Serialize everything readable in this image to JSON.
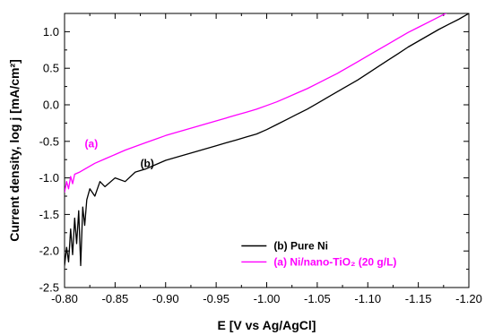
{
  "chart_data": {
    "type": "line",
    "xlabel": "E [V vs Ag/AgCl]",
    "ylabel": "Current density, log j [mA/cm²]",
    "xlim": [
      -0.8,
      -1.2
    ],
    "ylim": [
      -2.5,
      1.25
    ],
    "x_ticks": [
      -0.8,
      -0.85,
      -0.9,
      -0.95,
      -1.0,
      -1.05,
      -1.1,
      -1.15,
      -1.2
    ],
    "x_tick_labels": [
      "-0.80",
      "-0.85",
      "-0.90",
      "-0.95",
      "-1.00",
      "-1.05",
      "-1.10",
      "-1.15",
      "-1.20"
    ],
    "y_ticks": [
      -2.5,
      -2.0,
      -1.5,
      -1.0,
      -0.5,
      0.0,
      0.5,
      1.0
    ],
    "y_tick_labels": [
      "-2.5",
      "-2.0",
      "-1.5",
      "-1.0",
      "-0.5",
      "0.0",
      "0.5",
      "1.0"
    ],
    "grid": false,
    "legend_position": "lower-right",
    "series": [
      {
        "name": "(b) Pure Ni",
        "label": "(b)",
        "color": "#000000",
        "points": [
          [
            -0.8,
            -2.2
          ],
          [
            -0.802,
            -1.95
          ],
          [
            -0.804,
            -2.15
          ],
          [
            -0.806,
            -1.7
          ],
          [
            -0.808,
            -2.05
          ],
          [
            -0.81,
            -1.55
          ],
          [
            -0.812,
            -1.9
          ],
          [
            -0.814,
            -1.45
          ],
          [
            -0.816,
            -2.2
          ],
          [
            -0.818,
            -1.4
          ],
          [
            -0.82,
            -1.65
          ],
          [
            -0.822,
            -1.3
          ],
          [
            -0.825,
            -1.15
          ],
          [
            -0.83,
            -1.25
          ],
          [
            -0.835,
            -1.05
          ],
          [
            -0.84,
            -1.12
          ],
          [
            -0.85,
            -1.0
          ],
          [
            -0.86,
            -1.05
          ],
          [
            -0.87,
            -0.92
          ],
          [
            -0.88,
            -0.88
          ],
          [
            -0.89,
            -0.82
          ],
          [
            -0.9,
            -0.76
          ],
          [
            -0.91,
            -0.72
          ],
          [
            -0.92,
            -0.68
          ],
          [
            -0.93,
            -0.64
          ],
          [
            -0.94,
            -0.6
          ],
          [
            -0.95,
            -0.56
          ],
          [
            -0.96,
            -0.52
          ],
          [
            -0.97,
            -0.48
          ],
          [
            -0.98,
            -0.44
          ],
          [
            -0.99,
            -0.4
          ],
          [
            -1.0,
            -0.34
          ],
          [
            -1.01,
            -0.27
          ],
          [
            -1.02,
            -0.2
          ],
          [
            -1.03,
            -0.13
          ],
          [
            -1.04,
            -0.06
          ],
          [
            -1.05,
            0.02
          ],
          [
            -1.06,
            0.1
          ],
          [
            -1.07,
            0.18
          ],
          [
            -1.08,
            0.26
          ],
          [
            -1.09,
            0.34
          ],
          [
            -1.1,
            0.43
          ],
          [
            -1.11,
            0.52
          ],
          [
            -1.12,
            0.61
          ],
          [
            -1.13,
            0.7
          ],
          [
            -1.14,
            0.79
          ],
          [
            -1.15,
            0.87
          ],
          [
            -1.16,
            0.95
          ],
          [
            -1.17,
            1.03
          ],
          [
            -1.18,
            1.1
          ],
          [
            -1.19,
            1.17
          ],
          [
            -1.2,
            1.25
          ]
        ]
      },
      {
        "name": "(a) Ni/nano-TiO₂ (20 g/L)",
        "label": "(a)",
        "color": "#ff00ff",
        "points": [
          [
            -0.8,
            -1.2
          ],
          [
            -0.802,
            -1.05
          ],
          [
            -0.804,
            -1.15
          ],
          [
            -0.806,
            -0.98
          ],
          [
            -0.808,
            -1.08
          ],
          [
            -0.81,
            -0.95
          ],
          [
            -0.815,
            -0.92
          ],
          [
            -0.82,
            -0.88
          ],
          [
            -0.83,
            -0.8
          ],
          [
            -0.84,
            -0.74
          ],
          [
            -0.85,
            -0.68
          ],
          [
            -0.86,
            -0.62
          ],
          [
            -0.87,
            -0.57
          ],
          [
            -0.88,
            -0.52
          ],
          [
            -0.89,
            -0.47
          ],
          [
            -0.9,
            -0.42
          ],
          [
            -0.91,
            -0.38
          ],
          [
            -0.92,
            -0.34
          ],
          [
            -0.93,
            -0.3
          ],
          [
            -0.94,
            -0.26
          ],
          [
            -0.95,
            -0.22
          ],
          [
            -0.96,
            -0.18
          ],
          [
            -0.97,
            -0.14
          ],
          [
            -0.98,
            -0.1
          ],
          [
            -0.99,
            -0.06
          ],
          [
            -1.0,
            -0.01
          ],
          [
            -1.01,
            0.04
          ],
          [
            -1.02,
            0.1
          ],
          [
            -1.03,
            0.16
          ],
          [
            -1.04,
            0.22
          ],
          [
            -1.05,
            0.29
          ],
          [
            -1.06,
            0.36
          ],
          [
            -1.07,
            0.43
          ],
          [
            -1.08,
            0.51
          ],
          [
            -1.09,
            0.59
          ],
          [
            -1.1,
            0.67
          ],
          [
            -1.11,
            0.75
          ],
          [
            -1.12,
            0.83
          ],
          [
            -1.13,
            0.91
          ],
          [
            -1.14,
            0.99
          ],
          [
            -1.15,
            1.06
          ],
          [
            -1.16,
            1.13
          ],
          [
            -1.17,
            1.2
          ],
          [
            -1.18,
            1.27
          ]
        ]
      }
    ]
  }
}
